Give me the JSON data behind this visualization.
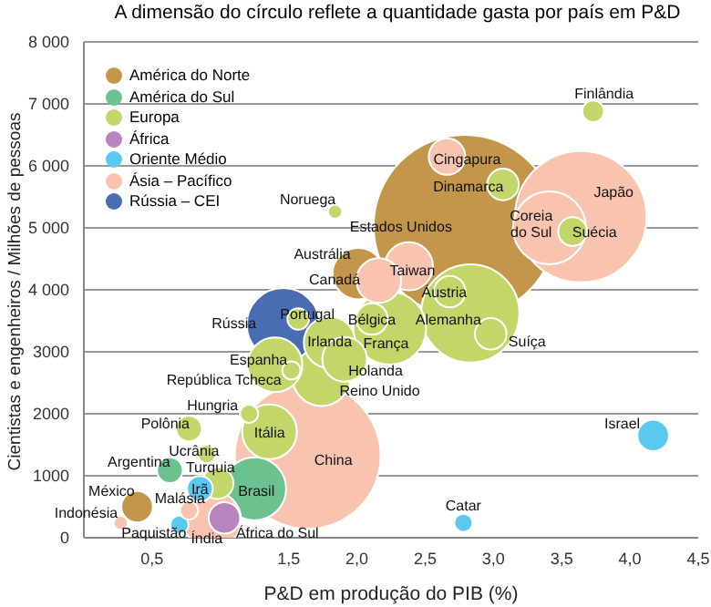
{
  "chart_data": {
    "type": "bubble",
    "title": "A dimensão do círculo reflete a quantidade gasta por país em P&D",
    "xlabel": "P&D em produção do PIB (%)",
    "ylabel": "Cientistas e engenheiros / Milhões de pessoas",
    "xlim": [
      0,
      4.5
    ],
    "xticks": [
      {
        "value": 0.5,
        "label": "0,5"
      },
      {
        "value": 1.5,
        "label": "1,5"
      },
      {
        "value": 2.0,
        "label": "2,0"
      },
      {
        "value": 2.5,
        "label": "2,5"
      },
      {
        "value": 3.0,
        "label": "3,0"
      },
      {
        "value": 3.5,
        "label": "3,5"
      },
      {
        "value": 4.0,
        "label": "4,0"
      },
      {
        "value": 4.5,
        "label": "4,5"
      }
    ],
    "ylim": [
      0,
      8000
    ],
    "yticks": [
      0,
      1000,
      2000,
      3000,
      {
        "value": 4000,
        "label": "4 000"
      },
      {
        "value": 5000,
        "label": "5 000"
      },
      {
        "value": 6000,
        "label": "6 000"
      },
      {
        "value": 7000,
        "label": "7 000"
      },
      {
        "value": 8000,
        "label": "8 000"
      }
    ],
    "grid": "y",
    "legend": "top left",
    "series": [
      {
        "name": "América do Norte",
        "color": "#c4964b",
        "x": [
          2.79,
          2.01,
          0.39
        ],
        "values": [
          5030,
          4260,
          500
        ],
        "sizes": [
          1,
          0.08,
          0.03
        ]
      },
      {
        "name": "América do Sul",
        "color": "#6cc28f",
        "x": [
          0.63,
          1.25
        ],
        "values": [
          1090,
          790
        ],
        "sizes": [
          0.02,
          0.12
        ]
      },
      {
        "name": "Europa",
        "color": "#c2d66a",
        "x": [
          3.73,
          3.58,
          3.07,
          1.84,
          2.68,
          2.83,
          2.98,
          2.11,
          2.24,
          1.57,
          1.8,
          1.4,
          1.52,
          1.91,
          1.74,
          1.21,
          1.36,
          0.77,
          0.9,
          0.98
        ],
        "values": [
          6880,
          4940,
          5700,
          5260,
          3970,
          3620,
          3290,
          3530,
          3380,
          3530,
          3150,
          2790,
          2700,
          2880,
          2590,
          2000,
          1710,
          1760,
          1350,
          880
        ],
        "sizes": [
          0.014,
          0.025,
          0.03,
          0.006,
          0.03,
          0.29,
          0.03,
          0.03,
          0.16,
          0.014,
          0.08,
          0.09,
          0.01,
          0.06,
          0.1,
          0.01,
          0.09,
          0.02,
          0.01,
          0.03
        ]
      },
      {
        "name": "África",
        "color": "#b784c0",
        "x": [
          1.03
        ],
        "values": [
          320
        ],
        "sizes": [
          0.03
        ]
      },
      {
        "name": "Oriente Médio",
        "color": "#5bc8f0",
        "x": [
          0.85,
          4.17,
          2.78,
          0.7
        ],
        "values": [
          790,
          1650,
          240,
          210
        ],
        "sizes": [
          0.02,
          0.03,
          0.01,
          0.01
        ]
      },
      {
        "name": "Ásia – Pacífico",
        "color": "#f8c4b0",
        "x": [
          1.64,
          3.64,
          3.41,
          2.66,
          2.38,
          2.16,
          0.94,
          0.77,
          0.27
        ],
        "values": [
          1320,
          5180,
          5000,
          6150,
          4380,
          4150,
          290,
          440,
          240
        ],
        "sizes": [
          0.64,
          0.52,
          0.16,
          0.04,
          0.07,
          0.06,
          0.1,
          0.01,
          0.006
        ]
      },
      {
        "name": "Rússia – CEI",
        "color": "#4a6cb3",
        "x": [
          1.46
        ],
        "values": [
          3440
        ],
        "sizes": [
          0.16
        ]
      }
    ],
    "annotations": [
      {
        "text": "Estados Unidos",
        "x": 2.79,
        "y": 5030
      },
      {
        "text": "Canadá",
        "x": 2.01,
        "y": 4260
      },
      {
        "text": "México",
        "x": 0.39,
        "y": 500
      },
      {
        "text": "Argentina",
        "x": 0.63,
        "y": 1090
      },
      {
        "text": "Brasil",
        "x": 1.25,
        "y": 790
      },
      {
        "text": "Finlândia",
        "x": 3.73,
        "y": 6880
      },
      {
        "text": "Suécia",
        "x": 3.58,
        "y": 4940
      },
      {
        "text": "Dinamarca",
        "x": 3.07,
        "y": 5700
      },
      {
        "text": "Noruega",
        "x": 1.84,
        "y": 5260
      },
      {
        "text": "Áustria",
        "x": 2.68,
        "y": 3970
      },
      {
        "text": "Alemanha",
        "x": 2.83,
        "y": 3620
      },
      {
        "text": "Suíça",
        "x": 2.98,
        "y": 3290
      },
      {
        "text": "Bélgica",
        "x": 2.11,
        "y": 3530
      },
      {
        "text": "França",
        "x": 2.24,
        "y": 3380
      },
      {
        "text": "Portugal",
        "x": 1.57,
        "y": 3530
      },
      {
        "text": "Irlanda",
        "x": 1.8,
        "y": 3150
      },
      {
        "text": "Espanha",
        "x": 1.4,
        "y": 2790
      },
      {
        "text": "República Tcheca",
        "x": 1.52,
        "y": 2700
      },
      {
        "text": "Holanda",
        "x": 1.91,
        "y": 2880
      },
      {
        "text": "Reino Unido",
        "x": 1.74,
        "y": 2590
      },
      {
        "text": "Hungria",
        "x": 1.21,
        "y": 2000
      },
      {
        "text": "Itália",
        "x": 1.36,
        "y": 1710
      },
      {
        "text": "Polônia",
        "x": 0.77,
        "y": 1760
      },
      {
        "text": "Ucrânia",
        "x": 0.9,
        "y": 1350
      },
      {
        "text": "Turquia",
        "x": 0.98,
        "y": 880
      },
      {
        "text": "África do Sul",
        "x": 1.03,
        "y": 320
      },
      {
        "text": "Irã",
        "x": 0.85,
        "y": 790
      },
      {
        "text": "Israel",
        "x": 4.17,
        "y": 1650
      },
      {
        "text": "Catar",
        "x": 2.78,
        "y": 240
      },
      {
        "text": "Paquistão",
        "x": 0.7,
        "y": 210
      },
      {
        "text": "China",
        "x": 1.64,
        "y": 1320
      },
      {
        "text": "Japão",
        "x": 3.64,
        "y": 5180
      },
      {
        "text": "Coreia do Sul",
        "x": 3.41,
        "y": 5000
      },
      {
        "text": "Cingapura",
        "x": 2.66,
        "y": 6150
      },
      {
        "text": "Taiwan",
        "x": 2.38,
        "y": 4380
      },
      {
        "text": "Austrália",
        "x": 2.16,
        "y": 4150
      },
      {
        "text": "Índia",
        "x": 0.94,
        "y": 290
      },
      {
        "text": "Malásia",
        "x": 0.77,
        "y": 440
      },
      {
        "text": "Indonésia",
        "x": 0.27,
        "y": 240
      },
      {
        "text": "Rússia",
        "x": 1.46,
        "y": 3440
      }
    ]
  }
}
